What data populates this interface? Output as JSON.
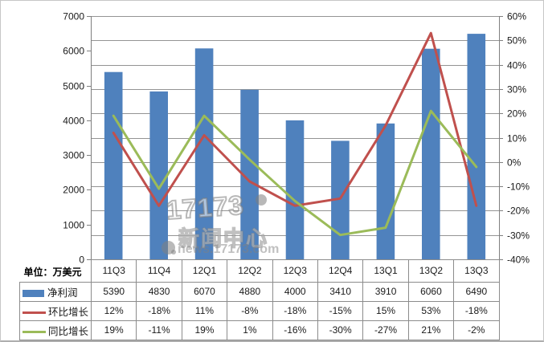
{
  "chart_data": {
    "type": "bar",
    "subtype": "bar-line-combo",
    "categories": [
      "11Q3",
      "11Q4",
      "12Q1",
      "12Q2",
      "12Q3",
      "12Q4",
      "13Q1",
      "13Q2",
      "13Q3"
    ],
    "series": [
      {
        "name": "净利润",
        "type": "bar",
        "axis": "left",
        "color": "#4f81bd",
        "values": [
          5390,
          4830,
          6070,
          4880,
          4000,
          3410,
          3910,
          6060,
          6490
        ]
      },
      {
        "name": "环比增长",
        "type": "line",
        "axis": "right",
        "color": "#c0504d",
        "unit": "%",
        "values": [
          12,
          -18,
          11,
          -8,
          -18,
          -15,
          15,
          53,
          -18
        ]
      },
      {
        "name": "同比增长",
        "type": "line",
        "axis": "right",
        "color": "#9bbb59",
        "unit": "%",
        "values": [
          19,
          -11,
          19,
          1,
          -16,
          -30,
          -27,
          21,
          -2
        ]
      }
    ],
    "left_axis": {
      "min": 0,
      "max": 7000,
      "step": 1000,
      "ticks": [
        "7000",
        "6000",
        "5000",
        "4000",
        "3000",
        "2000",
        "1000",
        "0"
      ],
      "unit_label": "单位：万美元"
    },
    "right_axis": {
      "min": -40,
      "max": 60,
      "step": 10,
      "ticks": [
        "60%",
        "50%",
        "40%",
        "30%",
        "20%",
        "10%",
        "0%",
        "-10%",
        "-20%",
        "-30%",
        "-40%"
      ]
    },
    "grid": true,
    "legend_position": "left-of-data-table",
    "title": ""
  },
  "data_table": {
    "corner_label": "单位：万美元",
    "columns": [
      "11Q3",
      "11Q4",
      "12Q1",
      "12Q2",
      "12Q3",
      "12Q4",
      "13Q1",
      "13Q2",
      "13Q3"
    ],
    "rows": [
      {
        "legend": "净利润",
        "swatch": "bar",
        "color": "#4f81bd",
        "values": [
          "5390",
          "4830",
          "6070",
          "4880",
          "4000",
          "3410",
          "3910",
          "6060",
          "6490"
        ]
      },
      {
        "legend": "环比增长",
        "swatch": "line",
        "color": "#c0504d",
        "values": [
          "12%",
          "-18%",
          "11%",
          "-8%",
          "-18%",
          "-15%",
          "15%",
          "53%",
          "-18%"
        ]
      },
      {
        "legend": "同比增长",
        "swatch": "line",
        "color": "#9bbb59",
        "values": [
          "19%",
          "-11%",
          "19%",
          "1%",
          "-16%",
          "-30%",
          "-27%",
          "21%",
          "-2%"
        ]
      }
    ]
  },
  "watermark": {
    "logo": "17173",
    "title": "新闻中心",
    "url": "news.17173.com"
  },
  "colors": {
    "bar": "#4f81bd",
    "line_qoq": "#c0504d",
    "line_yoy": "#9bbb59",
    "grid": "#949494",
    "spine": "#7f7f7f",
    "axis_text": "#1a1a1a",
    "table_border": "#8c8c8c",
    "background": "#ffffff"
  }
}
